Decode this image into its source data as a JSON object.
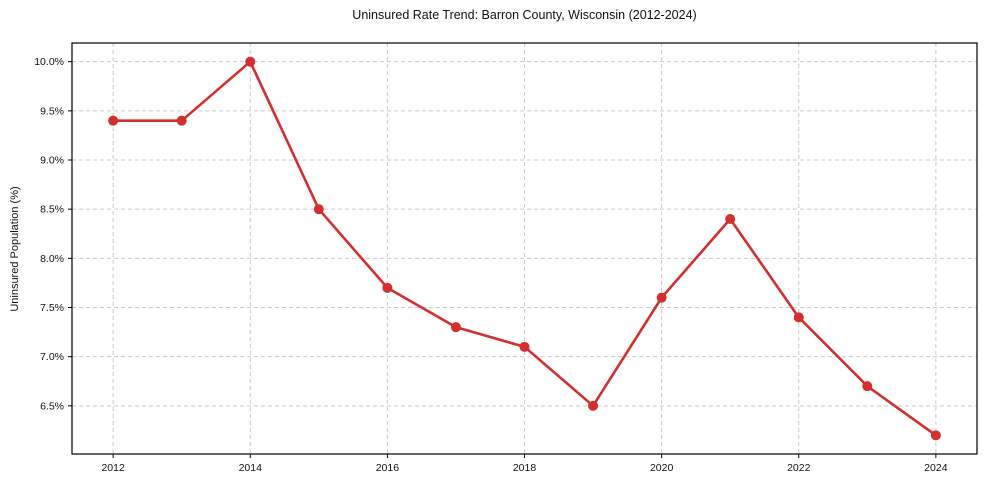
{
  "chart_data": {
    "type": "line",
    "title": "Uninsured Rate Trend: Barron County, Wisconsin (2012-2024)",
    "xlabel": "",
    "ylabel": "Uninsured Population (%)",
    "x": [
      2012,
      2013,
      2014,
      2015,
      2016,
      2017,
      2018,
      2019,
      2020,
      2021,
      2022,
      2023,
      2024
    ],
    "values": [
      9.4,
      9.4,
      10.0,
      8.5,
      7.7,
      7.3,
      7.1,
      6.5,
      7.6,
      8.4,
      7.4,
      6.7,
      6.2
    ],
    "xticks": [
      2012,
      2014,
      2016,
      2018,
      2020,
      2022,
      2024
    ],
    "yticks": [
      6.5,
      7.0,
      7.5,
      8.0,
      8.5,
      9.0,
      9.5,
      10.0
    ],
    "ytick_suffix": "%",
    "xlim": [
      2011.4,
      2024.6
    ],
    "ylim": [
      6.01,
      10.19
    ],
    "grid": true,
    "grid_style": "dashed",
    "legend": "none",
    "colors": {
      "line": "#d32f2f",
      "marker": "#d32f2f",
      "grid": "#c9c9c9",
      "axis": "#000000",
      "text": "#111111",
      "background": "#ffffff"
    },
    "line_width": 2.6,
    "marker_radius": 5
  }
}
